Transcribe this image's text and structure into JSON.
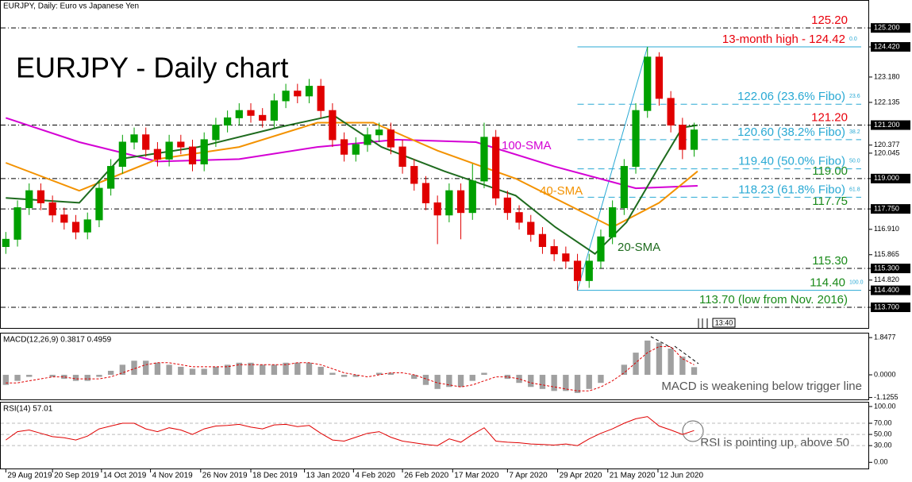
{
  "header": "EURJPY, Daily:  Euro vs Japanese Yen",
  "chart_data": [
    {
      "type": "candlestick",
      "title": "EURJPY - Daily chart",
      "xlim": [
        -0.5,
        74
      ],
      "ylim": [
        112.85,
        126.35
      ],
      "xticks": [
        {
          "value": 0,
          "label": "29 Aug 2019"
        },
        {
          "value": 4,
          "label": "20 Sep 2019"
        },
        {
          "value": 8.2,
          "label": "14 Oct 2019"
        },
        {
          "value": 12.4,
          "label": "4 Nov 2019"
        },
        {
          "value": 16.7,
          "label": "26 Nov 2019"
        },
        {
          "value": 21,
          "label": "18 Dec 2019"
        },
        {
          "value": 25.6,
          "label": "13 Jan 2020"
        },
        {
          "value": 29.8,
          "label": "4 Feb 2020"
        },
        {
          "value": 34,
          "label": "26 Feb 2020"
        },
        {
          "value": 38.3,
          "label": "17 Mar 2020"
        },
        {
          "value": 43,
          "label": "7 Apr 2020"
        },
        {
          "value": 47.3,
          "label": "29 Apr 2020"
        },
        {
          "value": 51.6,
          "label": "21 May 2020"
        },
        {
          "value": 55.9,
          "label": "12 Jun 2020"
        }
      ],
      "yticks": [
        {
          "value": 125.2,
          "label": "125.200"
        },
        {
          "value": 124.42,
          "label": "124.420"
        },
        {
          "value": 123.18,
          "label": "123.180"
        },
        122.135,
        {
          "value": 121.2,
          "label": "121.200"
        },
        120.377,
        120.045,
        {
          "value": 119,
          "label": "119.000"
        },
        {
          "value": 117.75,
          "label": "117.750"
        },
        {
          "value": 116.91,
          "label": "116.910"
        },
        115.865,
        {
          "value": 115.3,
          "label": "115.300"
        },
        {
          "value": 114.82,
          "label": "114.820"
        },
        {
          "value": 114.4,
          "label": "114.400"
        },
        {
          "value": 113.7,
          "label": "113.700"
        }
      ],
      "up_color": "#00a000",
      "down_color": "#e00000",
      "open": [
        116.2,
        116.5,
        117.8,
        118.5,
        118.0,
        117.5,
        117.2,
        116.8,
        117.3,
        118.6,
        119.5,
        120.5,
        120.8,
        120.2,
        119.8,
        120.5,
        120.3,
        119.6,
        120.6,
        121.2,
        121.5,
        121.8,
        121.6,
        121.4,
        122.2,
        122.6,
        122.4,
        122.8,
        121.8,
        120.6,
        120.0,
        120.4,
        120.8,
        121.0,
        120.3,
        119.5,
        118.8,
        118.0,
        117.5,
        118.5,
        117.6,
        118.9,
        120.7,
        118.2,
        117.6,
        117.2,
        116.7,
        116.2,
        115.9,
        115.6,
        114.8,
        115.6,
        116.6,
        117.8,
        119.5,
        121.8,
        124.0,
        122.3,
        121.2,
        120.2
      ],
      "high": [
        116.8,
        118.1,
        118.8,
        118.8,
        118.3,
        117.8,
        117.5,
        117.6,
        118.9,
        119.8,
        120.8,
        121.1,
        121.1,
        120.5,
        120.8,
        120.8,
        120.6,
        120.9,
        121.5,
        121.8,
        122.1,
        122.1,
        121.9,
        122.5,
        122.9,
        122.9,
        123.1,
        123.1,
        122.1,
        120.9,
        120.7,
        121.1,
        121.3,
        121.3,
        120.6,
        119.8,
        119.1,
        118.3,
        118.8,
        118.8,
        119.6,
        121.3,
        121.0,
        118.5,
        117.9,
        117.5,
        117.0,
        116.5,
        116.2,
        115.9,
        115.9,
        116.9,
        118.1,
        119.8,
        122.1,
        124.42,
        124.2,
        122.6,
        121.5,
        121.3
      ],
      "low": [
        115.9,
        116.2,
        117.5,
        117.7,
        117.2,
        116.9,
        116.5,
        116.5,
        117.0,
        118.3,
        119.2,
        120.2,
        119.9,
        119.5,
        119.5,
        120.0,
        119.3,
        119.3,
        120.3,
        120.9,
        121.2,
        121.3,
        121.1,
        121.1,
        121.9,
        122.1,
        122.1,
        121.5,
        120.3,
        119.7,
        119.7,
        120.1,
        120.5,
        120.0,
        119.2,
        118.5,
        117.7,
        116.3,
        117.2,
        116.5,
        117.3,
        118.6,
        117.9,
        117.3,
        116.9,
        116.4,
        115.9,
        115.6,
        115.3,
        114.4,
        114.5,
        115.3,
        116.3,
        117.5,
        119.2,
        121.5,
        122.0,
        120.9,
        119.8,
        119.9
      ],
      "close": [
        116.5,
        117.8,
        118.5,
        118.0,
        117.5,
        117.2,
        116.8,
        117.3,
        118.6,
        119.5,
        120.5,
        120.8,
        120.2,
        119.8,
        120.5,
        120.3,
        119.6,
        120.6,
        121.2,
        121.5,
        121.8,
        121.6,
        121.4,
        122.2,
        122.6,
        122.4,
        122.8,
        121.8,
        120.6,
        120.0,
        120.4,
        120.8,
        121.0,
        120.3,
        119.5,
        118.8,
        118.0,
        117.5,
        118.5,
        117.6,
        118.9,
        120.7,
        118.2,
        117.6,
        117.2,
        116.7,
        116.2,
        115.9,
        115.6,
        114.8,
        115.6,
        116.6,
        117.8,
        119.5,
        121.8,
        124.0,
        122.3,
        121.2,
        120.2,
        121.0
      ],
      "series": [
        {
          "name": "100-SMA",
          "color": "#d400d4",
          "x": [
            0,
            6.3,
            13,
            20,
            26.7,
            33.5,
            40.3,
            47,
            54,
            59.3
          ],
          "values": [
            121.5,
            120.5,
            119.7,
            119.8,
            120.3,
            120.6,
            120.5,
            119.5,
            118.6,
            118.7
          ]
        },
        {
          "name": "40-SMA",
          "color": "#f39200",
          "x": [
            0,
            6.3,
            13,
            20,
            26.7,
            31.5,
            37,
            43.7,
            52,
            56,
            59.3
          ],
          "values": [
            119.65,
            118.5,
            119.8,
            120.3,
            121.3,
            121.3,
            120.15,
            119.0,
            117.0,
            118.0,
            119.3
          ]
        },
        {
          "name": "20-SMA",
          "color": "#1e6b1e",
          "x": [
            0,
            6.3,
            9.7,
            16.5,
            23.3,
            28.1,
            32.2,
            37.6,
            43.7,
            47.1,
            50.5,
            53.2,
            56,
            58,
            59.3
          ],
          "values": [
            118.2,
            118.0,
            119.8,
            120.3,
            121.1,
            121.6,
            120.3,
            119.3,
            118.3,
            117.0,
            115.9,
            117.2,
            119.5,
            121.1,
            121.2
          ]
        }
      ],
      "levels": [
        {
          "label": "125.20",
          "value": 125.2,
          "color": "#e8000b"
        },
        {
          "label": "121.20",
          "value": 121.2,
          "color": "#e8000b"
        },
        {
          "label": "119.00",
          "value": 119,
          "color": "#1a8a1a"
        },
        {
          "label": "117.75",
          "value": 117.75,
          "color": "#1a8a1a"
        },
        {
          "label": "115.30",
          "value": 115.3,
          "color": "#1a8a1a"
        },
        {
          "label": "113.70 (low from Nov. 2016)",
          "value": 113.7,
          "color": "#1a8a1a"
        }
      ],
      "fibo": [
        {
          "label": "13-month high - 124.42",
          "value": 124.42,
          "tag": "0.0",
          "color": "#e8000b"
        },
        {
          "label": "122.06 (23.6% Fibo)",
          "value": 122.06,
          "tag": "23.6",
          "color": "#29a9d4"
        },
        {
          "label": "120.60 (38.2% Fibo)",
          "value": 120.6,
          "tag": "38.2",
          "color": "#29a9d4"
        },
        {
          "label": "119.40 (50.0% Fibo)",
          "value": 119.4,
          "tag": "50.0",
          "color": "#29a9d4"
        },
        {
          "label": "118.23 (61.8% Fibo)",
          "value": 118.23,
          "tag": "61.8",
          "color": "#29a9d4"
        },
        {
          "label": "114.40",
          "value": 114.4,
          "tag": "100.0",
          "color": "#1a8a1a"
        }
      ],
      "time_label": "13:40"
    },
    {
      "type": "macd",
      "title": "MACD(12,26,9) 0.3817 0.4959",
      "annotation": "MACD is weakening below trigger line",
      "ylim": [
        -1.22,
        2.05
      ],
      "yticks": [
        1.8477,
        {
          "value": 0,
          "label": "0.0000"
        },
        -1.1255
      ],
      "hist_color": "#a0a0a0",
      "signal_color": "#e00000",
      "values": [
        -0.5,
        -0.3,
        -0.1,
        0,
        -0.1,
        -0.2,
        -0.3,
        -0.3,
        -0.1,
        0.2,
        0.5,
        0.7,
        0.7,
        0.6,
        0.5,
        0.4,
        0.3,
        0.3,
        0.4,
        0.5,
        0.6,
        0.6,
        0.5,
        0.5,
        0.6,
        0.6,
        0.6,
        0.4,
        0.1,
        -0.1,
        -0.1,
        0,
        0.1,
        0.1,
        0,
        -0.2,
        -0.5,
        -0.7,
        -0.6,
        -0.6,
        -0.3,
        0.1,
        0,
        -0.2,
        -0.4,
        -0.6,
        -0.7,
        -0.8,
        -0.8,
        -0.9,
        -0.7,
        -0.4,
        0,
        0.5,
        1.1,
        1.7,
        1.6,
        1.3,
        0.9,
        0.3817
      ],
      "signal": [
        -0.4,
        -0.4,
        -0.3,
        -0.2,
        -0.1,
        -0.1,
        -0.2,
        -0.2,
        -0.2,
        -0.1,
        0.1,
        0.3,
        0.5,
        0.6,
        0.6,
        0.5,
        0.4,
        0.4,
        0.4,
        0.4,
        0.5,
        0.5,
        0.5,
        0.5,
        0.5,
        0.6,
        0.6,
        0.5,
        0.3,
        0.1,
        0,
        -0.1,
        0,
        0.1,
        0.1,
        0,
        -0.2,
        -0.4,
        -0.5,
        -0.6,
        -0.5,
        -0.3,
        -0.1,
        -0.1,
        -0.2,
        -0.4,
        -0.5,
        -0.6,
        -0.7,
        -0.8,
        -0.8,
        -0.6,
        -0.3,
        0.1,
        0.6,
        1.1,
        1.4,
        1.4,
        0.8,
        0.4959
      ]
    },
    {
      "type": "rsi",
      "title": "RSI(14) 57.01",
      "annotation": "RSI is pointing up, above 50",
      "ylim": [
        -11,
        107
      ],
      "yticks": [
        {
          "value": 100,
          "label": "100.00"
        },
        {
          "value": 70,
          "label": "70.00"
        },
        {
          "value": 50,
          "label": "50.00"
        },
        {
          "value": 30,
          "label": "30.00"
        },
        {
          "value": 0,
          "label": "0.00"
        }
      ],
      "color": "#e00000",
      "values": [
        40,
        55,
        58,
        52,
        46,
        44,
        40,
        47,
        60,
        65,
        70,
        70,
        60,
        55,
        62,
        58,
        50,
        60,
        65,
        66,
        68,
        63,
        60,
        67,
        68,
        64,
        66,
        52,
        40,
        38,
        45,
        52,
        55,
        45,
        38,
        35,
        32,
        30,
        42,
        36,
        50,
        62,
        38,
        36,
        35,
        33,
        32,
        31,
        33,
        30,
        42,
        52,
        60,
        70,
        78,
        82,
        65,
        58,
        50,
        57.01
      ]
    }
  ]
}
